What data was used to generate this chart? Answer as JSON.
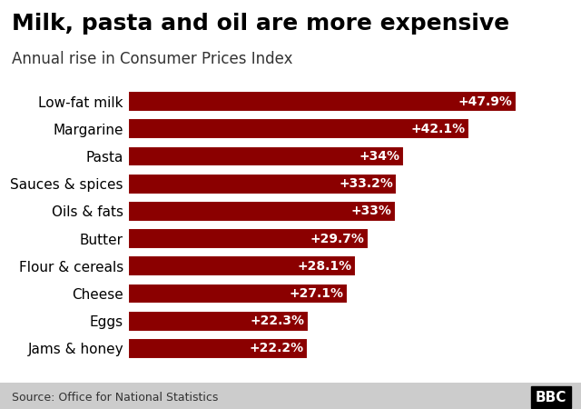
{
  "title": "Milk, pasta and oil are more expensive",
  "subtitle": "Annual rise in Consumer Prices Index",
  "source": "Source: Office for National Statistics",
  "categories": [
    "Jams & honey",
    "Eggs",
    "Cheese",
    "Flour & cereals",
    "Butter",
    "Oils & fats",
    "Sauces & spices",
    "Pasta",
    "Margarine",
    "Low-fat milk"
  ],
  "values": [
    22.2,
    22.3,
    27.1,
    28.1,
    29.7,
    33.0,
    33.2,
    34.0,
    42.1,
    47.9
  ],
  "labels": [
    "+22.2%",
    "+22.3%",
    "+27.1%",
    "+28.1%",
    "+29.7%",
    "+33%",
    "+33.2%",
    "+34%",
    "+42.1%",
    "+47.9%"
  ],
  "bar_color": "#8B0000",
  "background_color": "#ffffff",
  "footer_background": "#cccccc",
  "title_fontsize": 18,
  "subtitle_fontsize": 12,
  "source_fontsize": 9,
  "bar_label_fontsize": 10,
  "ytick_fontsize": 11
}
